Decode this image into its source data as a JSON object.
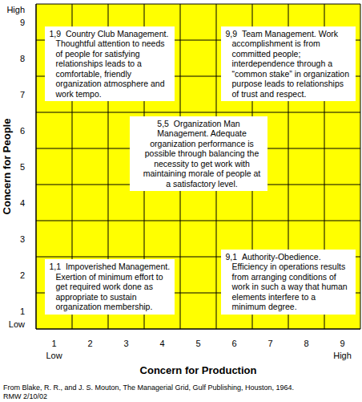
{
  "chart_data": {
    "type": "scatter",
    "x_label": "Concern for Production",
    "y_label": "Concern for People",
    "xlim": [
      0.5,
      9.5
    ],
    "ylim": [
      0.5,
      9.5
    ],
    "xticks": [
      1,
      2,
      3,
      4,
      5,
      6,
      7,
      8,
      9
    ],
    "yticks": [
      1,
      2,
      3,
      4,
      5,
      6,
      7,
      8,
      9
    ],
    "scale_labels": {
      "x": [
        "Low",
        "High"
      ],
      "y": [
        "Low",
        "High"
      ]
    },
    "grid": true,
    "color": "#ffff00",
    "points": [
      {
        "x": 1,
        "y": 9,
        "label": "1,9",
        "text": "Country Club Management. Thoughtful attention to needs of people for satisfying relationships leads to a comfortable, friendly organization atmosphere and work tempo."
      },
      {
        "x": 9,
        "y": 9,
        "label": "9,9",
        "text": "Team Management. Work accomplishment is from committed people; interdependence through a “common stake” in organization purpose leads to relationships of trust and respect."
      },
      {
        "x": 5,
        "y": 5,
        "label": "5,5",
        "text": "Organization Man Management. Adequate organization performance is possible through balancing the necessity to get work with maintaining morale of people at a satisfactory level."
      },
      {
        "x": 1,
        "y": 1,
        "label": "1,1",
        "text": "Impoverished Management. Exertion of minimum effort to get required work done as appropriate to sustain organization membership."
      },
      {
        "x": 9,
        "y": 1,
        "label": "9,1",
        "text": "Authority-Obedience. Efficiency in operations results from arranging conditions of work in such a way that human elements interfere to a minimum degree."
      }
    ],
    "notes": [
      "From Blake, R. R., and J. S. Mouton, The Managerial Grid, Gulf Publishing, Houston, 1964.",
      "RMW 2/10/02"
    ]
  }
}
